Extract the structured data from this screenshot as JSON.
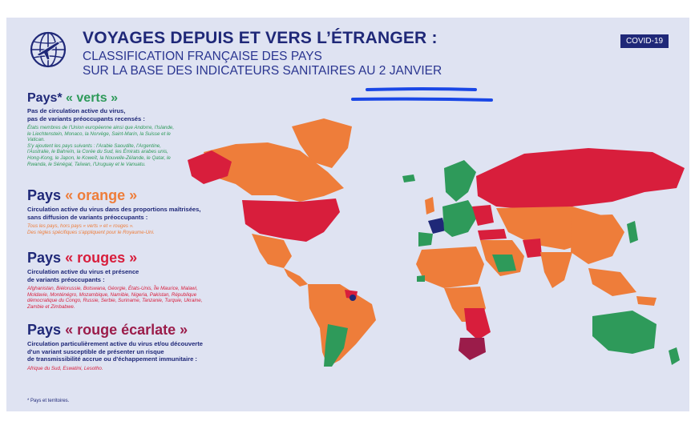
{
  "header": {
    "title": "VOYAGES DEPUIS ET VERS L’ÉTRANGER :",
    "subtitle_line1": "CLASSIFICATION FRANÇAISE DES PAYS",
    "subtitle_line2": "SUR LA BASE DES INDICATEURS SANITAIRES AU 2 JANVIER",
    "badge": "COVID-19"
  },
  "legend": [
    {
      "heading_prefix": "Pays*",
      "heading_label": "« verts »",
      "description": "Pas de circulation active du virus,\npas de variants préoccupants recensés :",
      "countries": "États membres de l'Union européenne ainsi que Andorre, l'Islande, le Liechtenstein, Monaco, la Norvège, Saint-Marin, la Suisse et le Vatican.\nS'y ajoutent les pays suivants : l'Arabie Saoudite, l'Argentine, l'Australie, le Bahreïn, la Corée du Sud, les Émirats arabes unis, Hong-Kong, le Japon, le Koweït, la Nouvelle-Zélande, le Qatar, le Rwanda, le Sénégal, Taïwan, l'Uruguay et le Vanuatu."
    },
    {
      "heading_prefix": "Pays",
      "heading_label": "« orange »",
      "description": "Circulation active du virus dans des proportions maîtrisées,\nsans diffusion de variants préoccupants :",
      "countries": "Tous les pays, hors pays « verts » et « rouges ».\nDes règles spécifiques s'appliquent pour le Royaume-Uni."
    },
    {
      "heading_prefix": "Pays",
      "heading_label": "« rouges »",
      "description": "Circulation active du virus et présence\nde variants préoccupants :",
      "countries": "Afghanistan, Biélorussie, Botswana, Géorgie, États-Unis, Île Maurice, Malawi, Moldavie, Monténégro, Mozambique, Namibie, Nigeria, Pakistan, République démocratique du Congo, Russie, Serbie, Suriname, Tanzanie, Turquie, Ukraine, Zambie et Zimbabwe."
    },
    {
      "heading_prefix": "Pays",
      "heading_label": "« rouge écarlate »",
      "description": "Circulation particulièrement active du virus et/ou découverte\nd'un variant susceptible de présenter un risque\nde transmissibilité accrue ou d'échappement immunitaire :",
      "countries": "Afrique du Sud, Eswatini, Lesotho."
    }
  ],
  "footnote": "* Pays et territoires.",
  "colors": {
    "green": "#2e9a5a",
    "orange": "#ee7d3a",
    "red": "#d81e3c",
    "scarlet": "#9b1c4a",
    "france": "#1f2878",
    "background": "#dfe3f2",
    "annotation": "#1a47e6"
  },
  "icons": {
    "logo": "globe-airplane-icon"
  }
}
